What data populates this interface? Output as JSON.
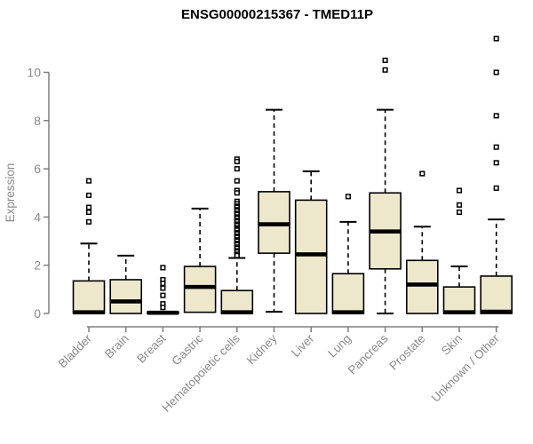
{
  "title": "ENSG00000215367 - TMED11P",
  "chart_data": {
    "type": "boxplot",
    "title": "ENSG00000215367 - TMED11P",
    "ylabel": "Expression",
    "xlabel": "",
    "ylim": [
      0,
      11.6
    ],
    "yticks": [
      0,
      2,
      4,
      6,
      8,
      10
    ],
    "grid": false,
    "legend": false,
    "categories": [
      "Bladder",
      "Brain",
      "Breast",
      "Gastric",
      "Hematopoietic cells",
      "Kidney",
      "Liver",
      "Lung",
      "Pancreas",
      "Prostate",
      "Skin",
      "Unknown / Other"
    ],
    "series": [
      {
        "name": "Bladder",
        "whisker_low": 0,
        "q1": 0,
        "median": 0.05,
        "q3": 1.35,
        "whisker_high": 2.9,
        "outliers": [
          5.5,
          4.9,
          4.4,
          4.2,
          3.8
        ]
      },
      {
        "name": "Brain",
        "whisker_low": 0,
        "q1": 0,
        "median": 0.5,
        "q3": 1.4,
        "whisker_high": 2.4,
        "outliers": []
      },
      {
        "name": "Breast",
        "whisker_low": 0,
        "q1": 0,
        "median": 0.03,
        "q3": 0.06,
        "whisker_high": 0.06,
        "outliers": [
          1.9,
          1.4,
          1.25,
          1.05,
          0.75,
          0.4,
          0.25
        ]
      },
      {
        "name": "Gastric",
        "whisker_low": 0,
        "q1": 0.05,
        "median": 1.1,
        "q3": 1.95,
        "whisker_high": 4.35,
        "outliers": []
      },
      {
        "name": "Hematopoietic cells",
        "whisker_low": 0,
        "q1": 0,
        "median": 0.05,
        "q3": 0.95,
        "whisker_high": 2.3,
        "outliers": [
          6.4,
          6.3,
          6.0,
          5.5,
          5.1,
          5.0,
          4.65,
          4.55,
          4.45,
          4.4,
          4.3,
          4.25,
          4.15,
          4.1,
          4.0,
          3.95,
          3.85,
          3.8,
          3.7,
          3.65,
          3.55,
          3.5,
          3.45,
          3.35,
          3.3,
          3.2,
          3.15,
          3.05,
          3.0,
          2.9,
          2.85,
          2.75,
          2.7,
          2.6,
          2.55,
          2.45,
          2.4
        ]
      },
      {
        "name": "Kidney",
        "whisker_low": 0.07,
        "q1": 2.5,
        "median": 3.7,
        "q3": 5.05,
        "whisker_high": 8.45,
        "outliers": []
      },
      {
        "name": "Liver",
        "whisker_low": 0,
        "q1": 0,
        "median": 2.45,
        "q3": 4.7,
        "whisker_high": 5.9,
        "outliers": []
      },
      {
        "name": "Lung",
        "whisker_low": 0,
        "q1": 0,
        "median": 0.05,
        "q3": 1.65,
        "whisker_high": 3.8,
        "outliers": [
          4.85
        ]
      },
      {
        "name": "Pancreas",
        "whisker_low": 0,
        "q1": 1.85,
        "median": 3.4,
        "q3": 5.0,
        "whisker_high": 8.45,
        "outliers": [
          10.5,
          10.1
        ]
      },
      {
        "name": "Prostate",
        "whisker_low": 0,
        "q1": 0,
        "median": 1.2,
        "q3": 2.2,
        "whisker_high": 3.6,
        "outliers": [
          5.8
        ]
      },
      {
        "name": "Skin",
        "whisker_low": 0,
        "q1": 0,
        "median": 0.05,
        "q3": 1.1,
        "whisker_high": 1.95,
        "outliers": [
          5.1,
          4.5,
          4.2
        ]
      },
      {
        "name": "Unknown / Other",
        "whisker_low": 0,
        "q1": 0,
        "median": 0.07,
        "q3": 1.55,
        "whisker_high": 3.9,
        "outliers": [
          11.4,
          10.0,
          8.2,
          6.9,
          6.25,
          5.2
        ]
      }
    ]
  },
  "colors": {
    "box_fill": "#EDE8CC",
    "box_border": "#000000",
    "median": "#000000",
    "whisker": "#000000",
    "outlier": "#000000",
    "axis": "#7E7E7E",
    "axis_text": "#8A8A8A",
    "title": "#000000",
    "background": "#FFFFFF"
  }
}
